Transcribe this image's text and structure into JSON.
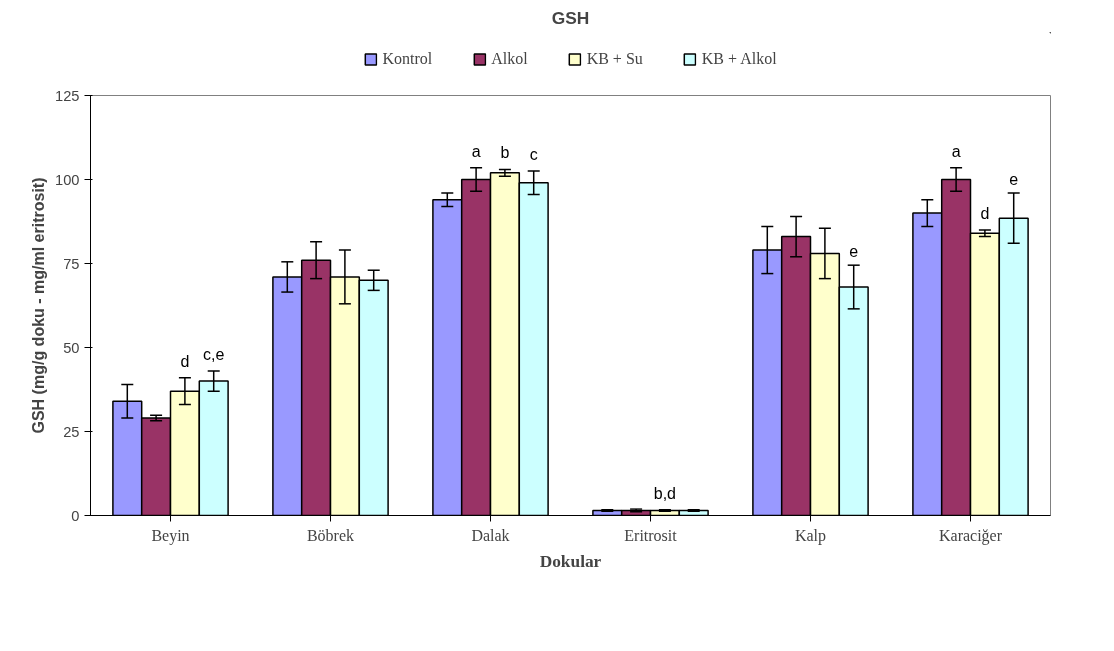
{
  "chart_data": {
    "type": "bar",
    "title": "GSH",
    "xlabel": "Dokular",
    "ylabel": "GSH (mg/g doku - mg/ml eritrosit)",
    "categories": [
      "Beyin",
      "Böbrek",
      "Dalak",
      "Eritrosit",
      "Kalp",
      "Karaciğer"
    ],
    "ylim": [
      0,
      125
    ],
    "yticks": [
      0,
      25,
      50,
      75,
      100,
      125
    ],
    "legend": "top",
    "grid": false,
    "series": [
      {
        "name": "Kontrol",
        "color": "#9999ff",
        "values": [
          34,
          71,
          94,
          1.5,
          79,
          90
        ],
        "errors": [
          5,
          4.5,
          2,
          0.2,
          7,
          4
        ],
        "value_labels": [
          null,
          null,
          null,
          null,
          null,
          null
        ]
      },
      {
        "name": "Alkol",
        "color": "#993366",
        "values": [
          29,
          76,
          100,
          1.5,
          83,
          100
        ],
        "errors": [
          0.8,
          5.5,
          3.5,
          0.4,
          6,
          3.5
        ],
        "value_labels": [
          null,
          null,
          "a",
          null,
          null,
          "a"
        ]
      },
      {
        "name": "KB + Su",
        "color": "#ffffcc",
        "values": [
          37,
          71,
          102,
          1.5,
          78,
          84
        ],
        "errors": [
          4,
          8,
          1,
          0.2,
          7.5,
          1
        ],
        "value_labels": [
          "d",
          null,
          "b",
          "b,d",
          null,
          "d"
        ]
      },
      {
        "name": "KB + Alkol",
        "color": "#ccffff",
        "values": [
          40,
          70,
          99,
          1.5,
          68,
          88.5
        ],
        "errors": [
          3,
          3,
          3.5,
          0.2,
          6.5,
          7.5
        ],
        "value_labels": [
          "c,e",
          null,
          "c",
          null,
          "e",
          "e"
        ]
      }
    ]
  }
}
